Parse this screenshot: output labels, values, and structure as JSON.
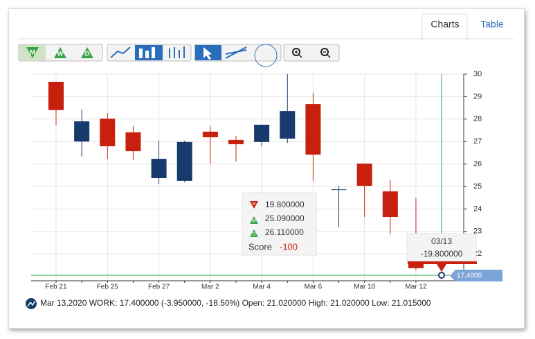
{
  "tabs": [
    "Charts",
    "Table"
  ],
  "toolbar": {
    "periods": [
      "M",
      "W",
      "D"
    ]
  },
  "chart_data": {
    "type": "candlestick",
    "categories": [
      "Feb 21",
      null,
      "Feb 25",
      null,
      "Feb 27",
      null,
      "Mar 2",
      null,
      "Mar 4",
      null,
      "Mar 6",
      null,
      "Mar 10",
      null,
      "Mar 12"
    ],
    "open": [
      29.66,
      27.0,
      28.02,
      27.41,
      25.37,
      25.25,
      27.44,
      27.07,
      26.98,
      27.13,
      28.67,
      24.84,
      26.02,
      24.78,
      21.57
    ],
    "high": [
      29.66,
      28.43,
      28.27,
      27.69,
      27.04,
      27.04,
      27.69,
      27.25,
      27.75,
      30.0,
      29.17,
      25.03,
      26.02,
      25.28,
      24.48
    ],
    "low": [
      27.72,
      26.33,
      26.23,
      26.17,
      25.12,
      25.19,
      26.02,
      26.11,
      26.79,
      26.94,
      25.25,
      23.18,
      23.64,
      22.87,
      21.27
    ],
    "close": [
      28.4,
      27.9,
      26.79,
      26.57,
      26.23,
      26.98,
      27.19,
      26.88,
      27.75,
      28.36,
      26.42,
      24.87,
      25.03,
      23.64,
      21.36
    ],
    "up_color": "#163a6b",
    "down_color": "#c8200e",
    "ylim": [
      20.8,
      30
    ],
    "yticks": [
      22,
      23,
      24,
      25,
      26,
      27,
      28,
      29,
      30
    ],
    "grid": true,
    "price_tag": "17.4000"
  },
  "tooltip": {
    "rows": [
      {
        "icon": "M",
        "value": "19.800000"
      },
      {
        "icon": "W",
        "value": "25.090000"
      },
      {
        "icon": "D",
        "value": "26.110000"
      }
    ],
    "score_label": "Score",
    "score": "-100"
  },
  "cursor_tooltip": {
    "date": "03/13",
    "value": "-19.800000"
  },
  "footer": [
    "Mar 13,2020",
    "WORK:",
    "17.400000",
    "(-3.950000, -18.50%)",
    "Open:",
    "21.020000",
    "High:",
    "21.020000",
    "Low:",
    "21.015000"
  ]
}
